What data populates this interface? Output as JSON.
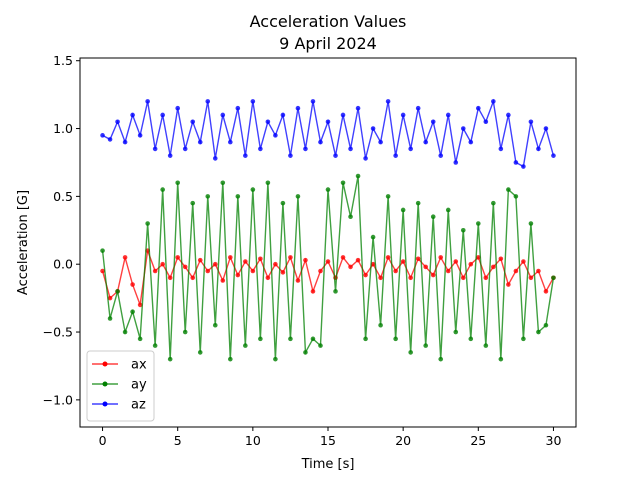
{
  "chart_data": {
    "type": "line",
    "title": "Acceleration Values",
    "subtitle": "9 April 2024",
    "xlabel": "Time [s]",
    "ylabel": "Acceleration [G]",
    "xlim": [
      -1.5,
      31.5
    ],
    "ylim": [
      -1.2,
      1.52
    ],
    "xticks": [
      0,
      5,
      10,
      15,
      20,
      25,
      30
    ],
    "xtick_labels": [
      "0",
      "5",
      "10",
      "15",
      "20",
      "25",
      "30"
    ],
    "yticks": [
      -1.0,
      -0.5,
      0.0,
      0.5,
      1.0,
      1.5
    ],
    "ytick_labels": [
      "−1.0",
      "−0.5",
      "0.0",
      "0.5",
      "1.0",
      "1.5"
    ],
    "grid": false,
    "legend_position": "lower-left",
    "marker": "circle",
    "series": [
      {
        "name": "ax",
        "color": "#ff0000",
        "x": [
          0,
          0.5,
          1,
          1.5,
          2,
          2.5,
          3,
          3.5,
          4,
          4.5,
          5,
          5.5,
          6,
          6.5,
          7,
          7.5,
          8,
          8.5,
          9,
          9.5,
          10,
          10.5,
          11,
          11.5,
          12,
          12.5,
          13,
          13.5,
          14,
          14.5,
          15,
          15.5,
          16,
          16.5,
          17,
          17.5,
          18,
          18.5,
          19,
          19.5,
          20,
          20.5,
          21,
          21.5,
          22,
          22.5,
          23,
          23.5,
          24,
          24.5,
          25,
          25.5,
          26,
          26.5,
          27,
          27.5,
          28,
          28.5,
          29,
          29.5,
          30
        ],
        "y": [
          -0.05,
          -0.25,
          -0.2,
          0.05,
          -0.15,
          -0.3,
          0.1,
          -0.05,
          0.0,
          -0.1,
          0.05,
          -0.02,
          -0.1,
          0.03,
          -0.05,
          0.0,
          -0.12,
          0.05,
          -0.08,
          0.02,
          -0.05,
          0.04,
          -0.1,
          0.0,
          -0.06,
          0.05,
          -0.12,
          0.03,
          -0.2,
          -0.05,
          0.02,
          -0.1,
          0.05,
          -0.02,
          0.03,
          -0.08,
          0.0,
          -0.1,
          0.05,
          -0.05,
          0.02,
          -0.1,
          0.04,
          -0.02,
          -0.08,
          0.05,
          -0.05,
          0.02,
          -0.1,
          0.0,
          0.05,
          -0.1,
          -0.02,
          0.04,
          -0.15,
          -0.05,
          0.02,
          -0.1,
          -0.05,
          -0.2,
          -0.1
        ]
      },
      {
        "name": "ay",
        "color": "#008000",
        "x": [
          0,
          0.5,
          1,
          1.5,
          2,
          2.5,
          3,
          3.5,
          4,
          4.5,
          5,
          5.5,
          6,
          6.5,
          7,
          7.5,
          8,
          8.5,
          9,
          9.5,
          10,
          10.5,
          11,
          11.5,
          12,
          12.5,
          13,
          13.5,
          14,
          14.5,
          15,
          15.5,
          16,
          16.5,
          17,
          17.5,
          18,
          18.5,
          19,
          19.5,
          20,
          20.5,
          21,
          21.5,
          22,
          22.5,
          23,
          23.5,
          24,
          24.5,
          25,
          25.5,
          26,
          26.5,
          27,
          27.5,
          28,
          28.5,
          29,
          29.5,
          30
        ],
        "y": [
          0.1,
          -0.4,
          -0.2,
          -0.5,
          -0.35,
          -0.55,
          0.3,
          -0.6,
          0.55,
          -0.7,
          0.6,
          -0.5,
          0.45,
          -0.65,
          0.5,
          -0.45,
          0.6,
          -0.7,
          0.5,
          -0.6,
          0.55,
          -0.55,
          0.6,
          -0.7,
          0.45,
          -0.55,
          0.5,
          -0.65,
          -0.55,
          -0.6,
          0.55,
          -0.2,
          0.6,
          0.35,
          0.65,
          -0.55,
          0.2,
          -0.45,
          0.5,
          -0.55,
          0.4,
          -0.65,
          0.45,
          -0.6,
          0.35,
          -0.7,
          0.4,
          -0.5,
          0.25,
          -0.55,
          0.3,
          -0.6,
          0.45,
          -0.7,
          0.55,
          0.5,
          -0.55,
          0.3,
          -0.5,
          -0.45,
          -0.1
        ]
      },
      {
        "name": "az",
        "color": "#0000ff",
        "x": [
          0,
          0.5,
          1,
          1.5,
          2,
          2.5,
          3,
          3.5,
          4,
          4.5,
          5,
          5.5,
          6,
          6.5,
          7,
          7.5,
          8,
          8.5,
          9,
          9.5,
          10,
          10.5,
          11,
          11.5,
          12,
          12.5,
          13,
          13.5,
          14,
          14.5,
          15,
          15.5,
          16,
          16.5,
          17,
          17.5,
          18,
          18.5,
          19,
          19.5,
          20,
          20.5,
          21,
          21.5,
          22,
          22.5,
          23,
          23.5,
          24,
          24.5,
          25,
          25.5,
          26,
          26.5,
          27,
          27.5,
          28,
          28.5,
          29,
          29.5,
          30
        ],
        "y": [
          0.95,
          0.92,
          1.05,
          0.9,
          1.1,
          0.95,
          1.2,
          0.85,
          1.1,
          0.8,
          1.15,
          0.85,
          1.05,
          0.9,
          1.2,
          0.78,
          1.1,
          0.9,
          1.15,
          0.8,
          1.2,
          0.85,
          1.05,
          0.95,
          1.1,
          0.8,
          1.15,
          0.85,
          1.2,
          0.9,
          1.05,
          0.8,
          1.1,
          0.85,
          1.15,
          0.78,
          1.0,
          0.9,
          1.2,
          0.8,
          1.1,
          0.85,
          1.15,
          0.9,
          1.05,
          0.8,
          1.1,
          0.75,
          1.0,
          0.9,
          1.15,
          1.05,
          1.2,
          0.85,
          1.1,
          0.75,
          0.72,
          1.05,
          0.85,
          1.0,
          0.8
        ]
      }
    ]
  }
}
